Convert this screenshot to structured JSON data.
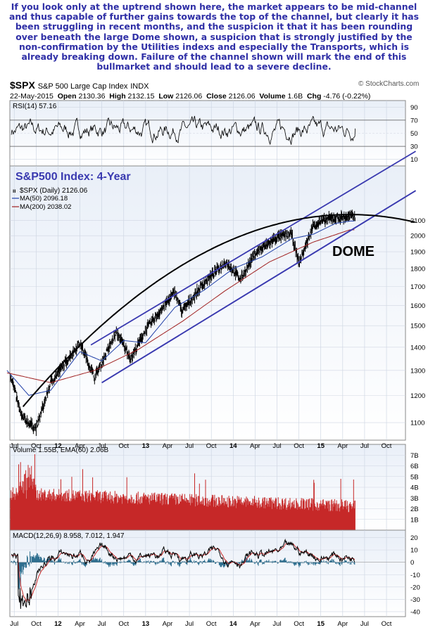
{
  "commentary": "If you look only at the uptrend shown here, the market appears to be mid-channel and thus capable of further gains towards the top of the channel, but clearly it has been struggling in recent months, and the suspicion it that it has been rounding over beneath the large Dome shown, a suspicion that is strongly justified by the non-confirmation by the Utilities indexs and especially the Transports, which is already breaking down. Failure of the channel shown will mark the end of this bullmarket and should lead to a severe decline.",
  "header": {
    "symbol": "$SPX",
    "name": "S&P 500 Large Cap Index",
    "exchange": "INDX",
    "source": "© StockCharts.com",
    "date": "22-May-2015",
    "open_label": "Open",
    "open": "2130.36",
    "high_label": "High",
    "high": "2132.15",
    "low_label": "Low",
    "low": "2126.06",
    "close_label": "Close",
    "close": "2126.06",
    "volume_label": "Volume",
    "volume": "1.6B",
    "chg_label": "Chg",
    "chg": "-4.76 (-0.22%)"
  },
  "chart_data": [
    {
      "type": "line",
      "panel": "RSI",
      "legend": [
        "RSI(14) 57.16"
      ],
      "yticks": [
        10,
        30,
        50,
        70,
        90
      ],
      "ylim": [
        0,
        100
      ],
      "reference_lines": [
        30,
        70
      ],
      "last_value": 57.16
    },
    {
      "type": "line",
      "panel": "Price",
      "annotation_title": "S&P500 Index: 4-Year",
      "annotation_dome": "DOME",
      "y_scale": "log",
      "ylim": [
        1040,
        2500
      ],
      "yticks": [
        1100,
        1200,
        1300,
        1400,
        1500,
        1600,
        1700,
        1800,
        1900,
        2000,
        2100
      ],
      "x_axis_labels": [
        "Jul",
        "Oct",
        "12",
        "Apr",
        "Jul",
        "Oct",
        "13",
        "Apr",
        "Jul",
        "Oct",
        "14",
        "Apr",
        "Jul",
        "Oct",
        "15",
        "Apr",
        "Jul",
        "Oct"
      ],
      "series": [
        {
          "name": "$SPX (Daily) 2126.06",
          "color": "#000000",
          "x": [
            "2011-06",
            "2011-08",
            "2011-10",
            "2011-12",
            "2012-04",
            "2012-06",
            "2012-09",
            "2012-11",
            "2013-01",
            "2013-05",
            "2013-06",
            "2013-09",
            "2013-12",
            "2014-02",
            "2014-04",
            "2014-07",
            "2014-09",
            "2014-10",
            "2014-12",
            "2015-02",
            "2015-05"
          ],
          "values": [
            1340,
            1120,
            1080,
            1250,
            1420,
            1270,
            1470,
            1350,
            1480,
            1670,
            1570,
            1720,
            1840,
            1740,
            1890,
            1990,
            2010,
            1830,
            2070,
            2110,
            2126
          ]
        },
        {
          "name": "MA(50) 2096.18",
          "color": "#1f3fa8",
          "x": [
            "2011-06",
            "2011-09",
            "2011-12",
            "2012-04",
            "2012-07",
            "2012-10",
            "2013-01",
            "2013-05",
            "2013-09",
            "2014-01",
            "2014-05",
            "2014-09",
            "2014-12",
            "2015-03",
            "2015-05"
          ],
          "values": [
            1300,
            1200,
            1220,
            1380,
            1340,
            1430,
            1420,
            1590,
            1680,
            1800,
            1870,
            1980,
            2010,
            2080,
            2096
          ]
        },
        {
          "name": "MA(200) 2038.02",
          "color": "#a02020",
          "x": [
            "2011-06",
            "2011-12",
            "2012-06",
            "2012-12",
            "2013-06",
            "2013-12",
            "2014-06",
            "2014-12",
            "2015-05"
          ],
          "values": [
            1290,
            1250,
            1300,
            1390,
            1520,
            1680,
            1840,
            1960,
            2038
          ]
        }
      ]
    },
    {
      "type": "bar",
      "panel": "Volume",
      "legend": [
        "Volume 1.55B",
        "EMA(60) 2.06B"
      ],
      "yticks_labels": [
        "1B",
        "2B",
        "3B",
        "4B",
        "5B",
        "6B",
        "7B"
      ],
      "ylim": [
        0,
        8
      ],
      "last_volume_B": 1.55,
      "ema60_B": 2.06
    },
    {
      "type": "line",
      "panel": "MACD",
      "legend": [
        "MACD(12,26,9) 8.958, 7.012, 1.947"
      ],
      "macd": 8.958,
      "signal": 7.012,
      "histogram": 1.947,
      "yticks": [
        -40,
        -30,
        -20,
        -10,
        0,
        10,
        20
      ],
      "ylim": [
        -44,
        26
      ]
    }
  ],
  "colors": {
    "commentary": "#2f2fa6",
    "channel": "#3a3ab0",
    "dome": "#000000",
    "title": "#3a3ab0",
    "panel_bg_top": "#e9eff8",
    "volume": "#c62828"
  }
}
